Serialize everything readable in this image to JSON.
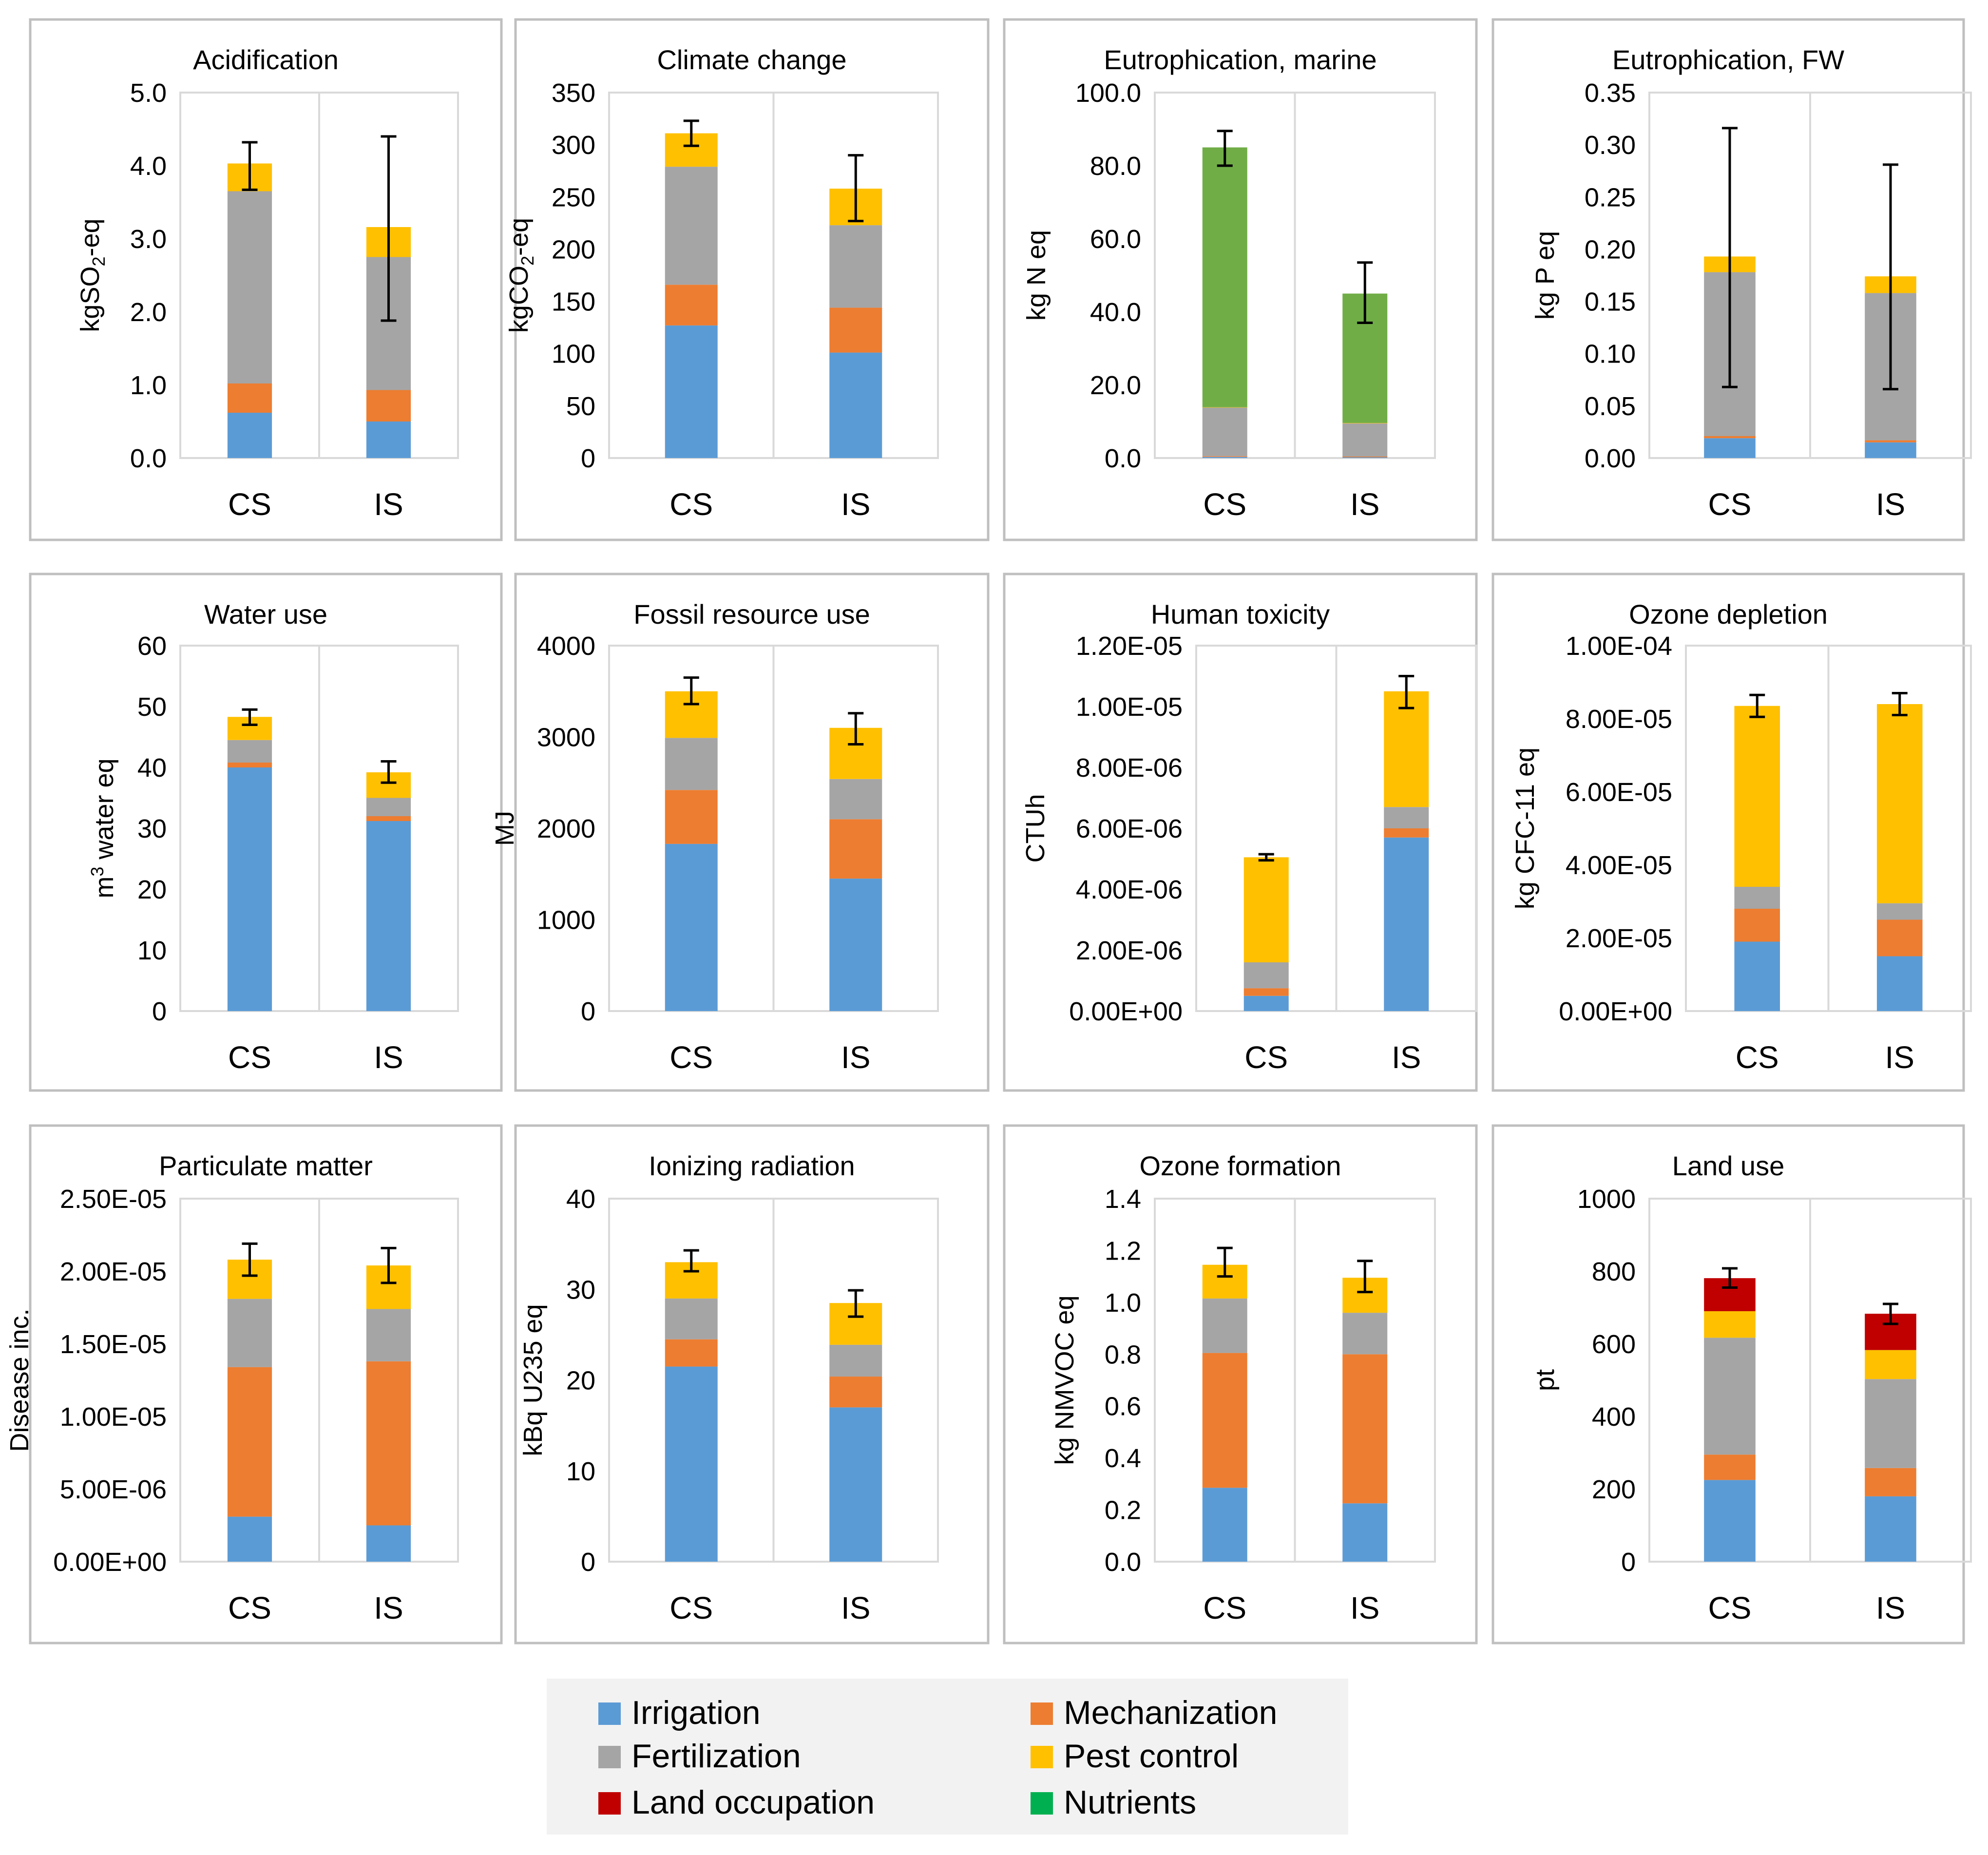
{
  "colors": {
    "irrigation": "#5b9bd5",
    "mechanization": "#ed7d31",
    "fertilization": "#a5a5a5",
    "pest_control": "#ffc000",
    "land_occupation": "#c00000",
    "nutrients": "#70ad47",
    "nutrients_legend": "#00b050",
    "frame": "#bfbfbf",
    "grid": "#d9d9d9",
    "legend_bg": "#f2f2f2"
  },
  "legend": [
    {
      "key": "irrigation",
      "label": "Irrigation"
    },
    {
      "key": "mechanization",
      "label": "Mechanization"
    },
    {
      "key": "fertilization",
      "label": "Fertilization"
    },
    {
      "key": "pest_control",
      "label": "Pest control"
    },
    {
      "key": "land_occupation",
      "label": "Land occupation"
    },
    {
      "key": "nutrients",
      "label": "Nutrients"
    }
  ],
  "chart_data": [
    {
      "type": "bar",
      "stacked": true,
      "title": "Acidification",
      "ylabel_parts": [
        "kgSO",
        "2",
        "-eq"
      ],
      "categories": [
        "CS",
        "IS"
      ],
      "ylim": [
        0,
        5
      ],
      "ticks": [
        0.0,
        1.0,
        2.0,
        3.0,
        4.0,
        5.0
      ],
      "tick_labels": [
        "0.0",
        "1.0",
        "2.0",
        "3.0",
        "4.0",
        "5.0"
      ],
      "series": [
        {
          "name": "Irrigation",
          "key": "irrigation",
          "values": [
            0.62,
            0.5
          ]
        },
        {
          "name": "Mechanization",
          "key": "mechanization",
          "values": [
            0.4,
            0.43
          ]
        },
        {
          "name": "Fertilization",
          "key": "fertilization",
          "values": [
            2.63,
            1.82
          ]
        },
        {
          "name": "Pest control",
          "key": "pest_control",
          "values": [
            0.38,
            0.41
          ]
        }
      ],
      "error_bars": [
        {
          "low": 3.67,
          "high": 4.32
        },
        {
          "low": 1.88,
          "high": 4.4
        }
      ]
    },
    {
      "type": "bar",
      "stacked": true,
      "title": "Climate change",
      "ylabel_parts": [
        "kgCO",
        "2",
        "-eq"
      ],
      "categories": [
        "CS",
        "IS"
      ],
      "ylim": [
        0,
        350
      ],
      "ticks": [
        0,
        50,
        100,
        150,
        200,
        250,
        300,
        350
      ],
      "tick_labels": [
        "0",
        "50",
        "100",
        "150",
        "200",
        "250",
        "300",
        "350"
      ],
      "series": [
        {
          "name": "Irrigation",
          "key": "irrigation",
          "values": [
            127,
            101
          ]
        },
        {
          "name": "Mechanization",
          "key": "mechanization",
          "values": [
            39,
            43
          ]
        },
        {
          "name": "Fertilization",
          "key": "fertilization",
          "values": [
            113,
            79
          ]
        },
        {
          "name": "Pest control",
          "key": "pest_control",
          "values": [
            32,
            35
          ]
        }
      ],
      "error_bars": [
        {
          "low": 299,
          "high": 323
        },
        {
          "low": 227,
          "high": 290
        }
      ]
    },
    {
      "type": "bar",
      "stacked": true,
      "title": "Eutrophication, marine",
      "ylabel_parts": [
        "kg N eq"
      ],
      "categories": [
        "CS",
        "IS"
      ],
      "ylim": [
        0,
        100
      ],
      "ticks": [
        0,
        20,
        40,
        60,
        80,
        100
      ],
      "tick_labels": [
        "0.0",
        "20.0",
        "40.0",
        "60.0",
        "80.0",
        "100.0"
      ],
      "series": [
        {
          "name": "Irrigation",
          "key": "irrigation",
          "values": [
            0.3,
            0.2
          ]
        },
        {
          "name": "Mechanization",
          "key": "mechanization",
          "values": [
            0.2,
            0.2
          ]
        },
        {
          "name": "Fertilization",
          "key": "fertilization",
          "values": [
            13.3,
            9.1
          ]
        },
        {
          "name": "Pest control",
          "key": "pest_control",
          "values": [
            0.1,
            0.1
          ]
        },
        {
          "name": "Nutrients",
          "key": "nutrients",
          "values": [
            71.1,
            35.4
          ]
        }
      ],
      "error_bars": [
        {
          "low": 80,
          "high": 89.5
        },
        {
          "low": 37,
          "high": 53.5
        }
      ]
    },
    {
      "type": "bar",
      "stacked": true,
      "title": "Eutrophication, FW",
      "ylabel_parts": [
        "kg P eq"
      ],
      "categories": [
        "CS",
        "IS"
      ],
      "ylim": [
        0,
        0.35
      ],
      "ticks": [
        0,
        0.05,
        0.1,
        0.15,
        0.2,
        0.25,
        0.3,
        0.35
      ],
      "tick_labels": [
        "0.00",
        "0.05",
        "0.10",
        "0.15",
        "0.20",
        "0.25",
        "0.30",
        "0.35"
      ],
      "series": [
        {
          "name": "Irrigation",
          "key": "irrigation",
          "values": [
            0.019,
            0.015
          ]
        },
        {
          "name": "Mechanization",
          "key": "mechanization",
          "values": [
            0.002,
            0.002
          ]
        },
        {
          "name": "Fertilization",
          "key": "fertilization",
          "values": [
            0.157,
            0.141
          ]
        },
        {
          "name": "Pest control",
          "key": "pest_control",
          "values": [
            0.015,
            0.016
          ]
        }
      ],
      "error_bars": [
        {
          "low": 0.068,
          "high": 0.316
        },
        {
          "low": 0.066,
          "high": 0.281
        }
      ]
    },
    {
      "type": "bar",
      "stacked": true,
      "title": "Water use",
      "ylabel_parts": [
        "m",
        "3",
        " water eq"
      ],
      "ylabel_sup": true,
      "categories": [
        "CS",
        "IS"
      ],
      "ylim": [
        0,
        60
      ],
      "ticks": [
        0,
        10,
        20,
        30,
        40,
        50,
        60
      ],
      "tick_labels": [
        "0",
        "10",
        "20",
        "30",
        "40",
        "50",
        "60"
      ],
      "series": [
        {
          "name": "Irrigation",
          "key": "irrigation",
          "values": [
            40,
            31.2
          ]
        },
        {
          "name": "Mechanization",
          "key": "mechanization",
          "values": [
            0.8,
            0.8
          ]
        },
        {
          "name": "Fertilization",
          "key": "fertilization",
          "values": [
            3.7,
            3
          ]
        },
        {
          "name": "Pest control",
          "key": "pest_control",
          "values": [
            3.8,
            4.2
          ]
        }
      ],
      "error_bars": [
        {
          "low": 47,
          "high": 49.5
        },
        {
          "low": 37.5,
          "high": 41
        }
      ]
    },
    {
      "type": "bar",
      "stacked": true,
      "title": "Fossil resource use",
      "ylabel_parts": [
        "MJ"
      ],
      "categories": [
        "CS",
        "IS"
      ],
      "ylim": [
        0,
        4000
      ],
      "ticks": [
        0,
        1000,
        2000,
        3000,
        4000
      ],
      "tick_labels": [
        "0",
        "1000",
        "2000",
        "3000",
        "4000"
      ],
      "series": [
        {
          "name": "Irrigation",
          "key": "irrigation",
          "values": [
            1830,
            1450
          ]
        },
        {
          "name": "Mechanization",
          "key": "mechanization",
          "values": [
            590,
            650
          ]
        },
        {
          "name": "Fertilization",
          "key": "fertilization",
          "values": [
            570,
            440
          ]
        },
        {
          "name": "Pest control",
          "key": "pest_control",
          "values": [
            510,
            560
          ]
        }
      ],
      "error_bars": [
        {
          "low": 3360,
          "high": 3650
        },
        {
          "low": 2920,
          "high": 3260
        }
      ]
    },
    {
      "type": "bar",
      "stacked": true,
      "title": "Human toxicity",
      "ylabel_parts": [
        "CTUh"
      ],
      "categories": [
        "CS",
        "IS"
      ],
      "ylim": [
        0,
        1.2e-05
      ],
      "ticks": [
        0,
        2e-06,
        4e-06,
        6e-06,
        8e-06,
        1e-05,
        1.2e-05
      ],
      "tick_labels": [
        "0.00E+00",
        "2.00E-06",
        "4.00E-06",
        "6.00E-06",
        "8.00E-06",
        "1.00E-05",
        "1.20E-05"
      ],
      "series": [
        {
          "name": "Irrigation",
          "key": "irrigation",
          "values": [
            5e-07,
            5.7e-06
          ]
        },
        {
          "name": "Mechanization",
          "key": "mechanization",
          "values": [
            2.5e-07,
            3e-07
          ]
        },
        {
          "name": "Fertilization",
          "key": "fertilization",
          "values": [
            8.5e-07,
            7e-07
          ]
        },
        {
          "name": "Pest control",
          "key": "pest_control",
          "values": [
            3.45e-06,
            3.8e-06
          ]
        }
      ],
      "error_bars": [
        {
          "low": 4.95e-06,
          "high": 5.15e-06
        },
        {
          "low": 9.95e-06,
          "high": 1.1e-05
        }
      ]
    },
    {
      "type": "bar",
      "stacked": true,
      "title": "Ozone depletion",
      "ylabel_parts": [
        "kg CFC-11 eq"
      ],
      "categories": [
        "CS",
        "IS"
      ],
      "ylim": [
        0,
        0.0001
      ],
      "ticks": [
        0,
        2e-05,
        4e-05,
        6e-05,
        8e-05,
        0.0001
      ],
      "tick_labels": [
        "0.00E+00",
        "2.00E-05",
        "4.00E-05",
        "6.00E-05",
        "8.00E-05",
        "1.00E-04"
      ],
      "series": [
        {
          "name": "Irrigation",
          "key": "irrigation",
          "values": [
            1.9e-05,
            1.5e-05
          ]
        },
        {
          "name": "Mechanization",
          "key": "mechanization",
          "values": [
            9e-06,
            1e-05
          ]
        },
        {
          "name": "Fertilization",
          "key": "fertilization",
          "values": [
            6e-06,
            4.5e-06
          ]
        },
        {
          "name": "Pest control",
          "key": "pest_control",
          "values": [
            4.95e-05,
            5.45e-05
          ]
        }
      ],
      "error_bars": [
        {
          "low": 8.05e-05,
          "high": 8.65e-05
        },
        {
          "low": 8.1e-05,
          "high": 8.7e-05
        }
      ]
    },
    {
      "type": "bar",
      "stacked": true,
      "title": "Particulate matter",
      "ylabel_parts": [
        "Disease inc."
      ],
      "categories": [
        "CS",
        "IS"
      ],
      "ylim": [
        0,
        2.5e-05
      ],
      "ticks": [
        0,
        5e-06,
        1e-05,
        1.5e-05,
        2e-05,
        2.5e-05
      ],
      "tick_labels": [
        "0.00E+00",
        "5.00E-06",
        "1.00E-05",
        "1.50E-05",
        "2.00E-05",
        "2.50E-05"
      ],
      "series": [
        {
          "name": "Irrigation",
          "key": "irrigation",
          "values": [
            3.1e-06,
            2.5e-06
          ]
        },
        {
          "name": "Mechanization",
          "key": "mechanization",
          "values": [
            1.03e-05,
            1.13e-05
          ]
        },
        {
          "name": "Fertilization",
          "key": "fertilization",
          "values": [
            4.7e-06,
            3.6e-06
          ]
        },
        {
          "name": "Pest control",
          "key": "pest_control",
          "values": [
            2.7e-06,
            3e-06
          ]
        }
      ],
      "error_bars": [
        {
          "low": 1.97e-05,
          "high": 2.19e-05
        },
        {
          "low": 1.92e-05,
          "high": 2.16e-05
        }
      ]
    },
    {
      "type": "bar",
      "stacked": true,
      "title": "Ionizing radiation",
      "ylabel_parts": [
        "kBq U235 eq"
      ],
      "categories": [
        "CS",
        "IS"
      ],
      "ylim": [
        0,
        40
      ],
      "ticks": [
        0,
        10,
        20,
        30,
        40
      ],
      "tick_labels": [
        "0",
        "10",
        "20",
        "30",
        "40"
      ],
      "series": [
        {
          "name": "Irrigation",
          "key": "irrigation",
          "values": [
            21.5,
            17
          ]
        },
        {
          "name": "Mechanization",
          "key": "mechanization",
          "values": [
            3,
            3.4
          ]
        },
        {
          "name": "Fertilization",
          "key": "fertilization",
          "values": [
            4.5,
            3.5
          ]
        },
        {
          "name": "Pest control",
          "key": "pest_control",
          "values": [
            4,
            4.6
          ]
        }
      ],
      "error_bars": [
        {
          "low": 32,
          "high": 34.3
        },
        {
          "low": 27,
          "high": 29.9
        }
      ]
    },
    {
      "type": "bar",
      "stacked": true,
      "title": "Ozone formation",
      "ylabel_parts": [
        "kg NMVOC eq"
      ],
      "categories": [
        "CS",
        "IS"
      ],
      "ylim": [
        0,
        1.4
      ],
      "ticks": [
        0,
        0.2,
        0.4,
        0.6,
        0.8,
        1.0,
        1.2,
        1.4
      ],
      "tick_labels": [
        "0.0",
        "0.2",
        "0.4",
        "0.6",
        "0.8",
        "1.0",
        "1.2",
        "1.4"
      ],
      "series": [
        {
          "name": "Irrigation",
          "key": "irrigation",
          "values": [
            0.285,
            0.225
          ]
        },
        {
          "name": "Mechanization",
          "key": "mechanization",
          "values": [
            0.52,
            0.575
          ]
        },
        {
          "name": "Fertilization",
          "key": "fertilization",
          "values": [
            0.21,
            0.16
          ]
        },
        {
          "name": "Pest control",
          "key": "pest_control",
          "values": [
            0.13,
            0.135
          ]
        }
      ],
      "error_bars": [
        {
          "low": 1.1,
          "high": 1.21
        },
        {
          "low": 1.04,
          "high": 1.16
        }
      ]
    },
    {
      "type": "bar",
      "stacked": true,
      "title": "Land use",
      "ylabel_parts": [
        "pt"
      ],
      "categories": [
        "CS",
        "IS"
      ],
      "ylim": [
        0,
        1000
      ],
      "ticks": [
        0,
        200,
        400,
        600,
        800,
        1000
      ],
      "tick_labels": [
        "0",
        "200",
        "400",
        "600",
        "800",
        "1000"
      ],
      "series": [
        {
          "name": "Irrigation",
          "key": "irrigation",
          "values": [
            225,
            180
          ]
        },
        {
          "name": "Mechanization",
          "key": "mechanization",
          "values": [
            70,
            78
          ]
        },
        {
          "name": "Fertilization",
          "key": "fertilization",
          "values": [
            322,
            245
          ]
        },
        {
          "name": "Pest control",
          "key": "pest_control",
          "values": [
            73,
            80
          ]
        },
        {
          "name": "Land occupation",
          "key": "land_occupation",
          "values": [
            91,
            100
          ]
        }
      ],
      "error_bars": [
        {
          "low": 755,
          "high": 808
        },
        {
          "low": 655,
          "high": 710
        }
      ]
    }
  ]
}
